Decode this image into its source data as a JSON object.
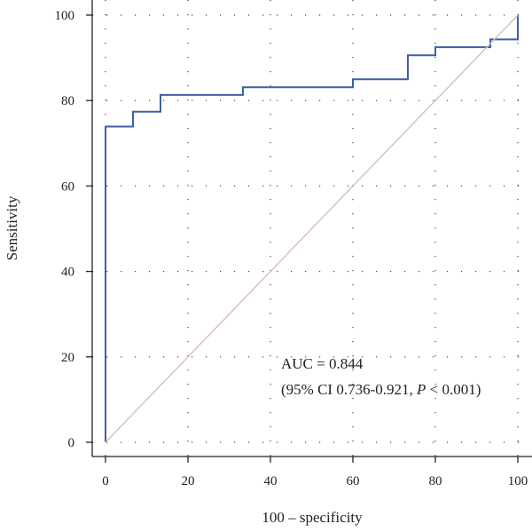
{
  "chart_data": {
    "type": "line",
    "title": "",
    "xlabel": "100 – specificity",
    "ylabel": "Sensitivity",
    "xlim": [
      0,
      100
    ],
    "ylim": [
      0,
      100
    ],
    "xticks": [
      0,
      20,
      40,
      60,
      80,
      100
    ],
    "yticks": [
      0,
      20,
      40,
      60,
      80,
      100
    ],
    "grid": "dotted",
    "series": [
      {
        "color": "#3f5ea8",
        "style": "step",
        "x": [
          0,
          0,
          6.67,
          6.67,
          13.33,
          13.33,
          33.33,
          33.33,
          60,
          60,
          73.33,
          73.33,
          80,
          80,
          93.33,
          93.33,
          100,
          100
        ],
        "y": [
          0,
          73.9,
          73.9,
          77.4,
          77.4,
          81.3,
          81.3,
          83.1,
          83.1,
          85.0,
          85.0,
          90.6,
          90.6,
          92.5,
          92.5,
          94.3,
          94.3,
          100
        ]
      },
      {
        "color": "#d6bcc4",
        "style": "reference",
        "x": [
          0,
          100
        ],
        "y": [
          0,
          100
        ]
      }
    ],
    "annotation": {
      "line1": "AUC = 0.844",
      "line2_prefix": "(95% CI 0.736-0.921, ",
      "line2_italic": "P",
      "line2_suffix": " < 0.001)"
    }
  }
}
